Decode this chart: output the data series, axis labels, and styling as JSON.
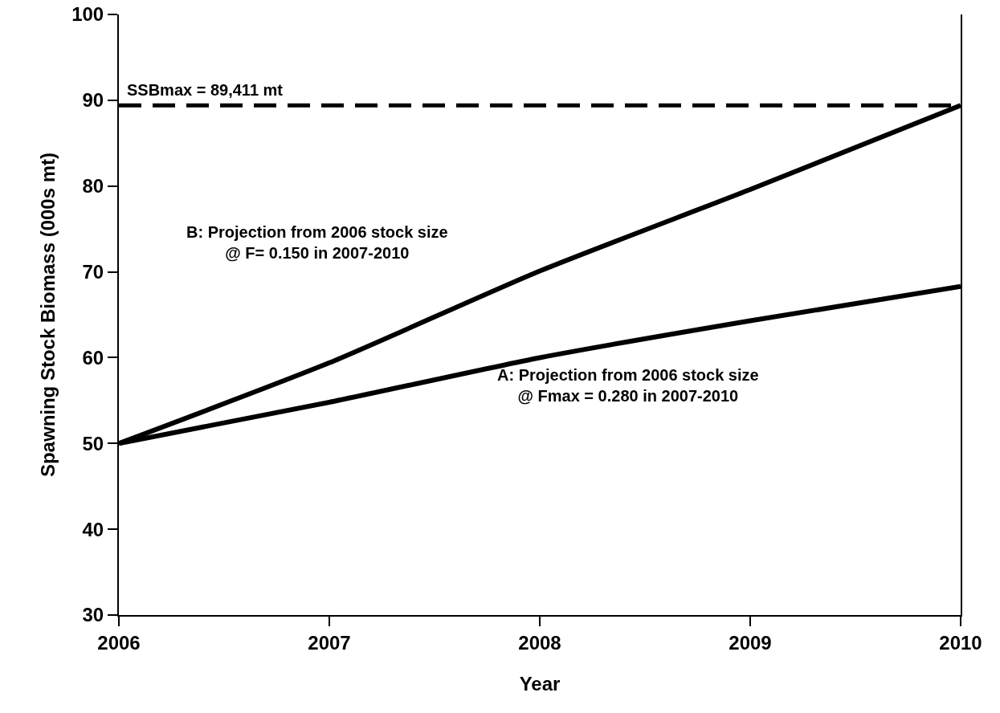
{
  "chart_data": {
    "type": "line",
    "xlabel": "Year",
    "ylabel": "Spawning Stock Biomass (000s mt)",
    "x": [
      2006,
      2007,
      2008,
      2009,
      2010
    ],
    "series": [
      {
        "name": "A: Projection from 2006 stock size\n@ Fmax = 0.280 in 2007-2010",
        "color": "#000000",
        "values": [
          50,
          54.8,
          60,
          64.3,
          68.3
        ]
      },
      {
        "name": "B: Projection from 2006 stock size\n@ F= 0.150 in 2007-2010",
        "color": "#000000",
        "values": [
          50,
          59.4,
          70.1,
          79.6,
          89.4
        ]
      }
    ],
    "ref_lines": [
      {
        "axis": "y",
        "value": 89.411,
        "label": "SSBmax = 89,411 mt",
        "color": "#000000",
        "line_style": "dashed"
      }
    ],
    "xlim": [
      2006,
      2010
    ],
    "xticks": [
      2006,
      2007,
      2008,
      2009,
      2010
    ],
    "ylim": [
      30,
      100
    ],
    "yticks": [
      30,
      40,
      50,
      60,
      70,
      80,
      90,
      100
    ],
    "grid": false,
    "legend": false,
    "marker": "none",
    "line_style": "solid"
  }
}
